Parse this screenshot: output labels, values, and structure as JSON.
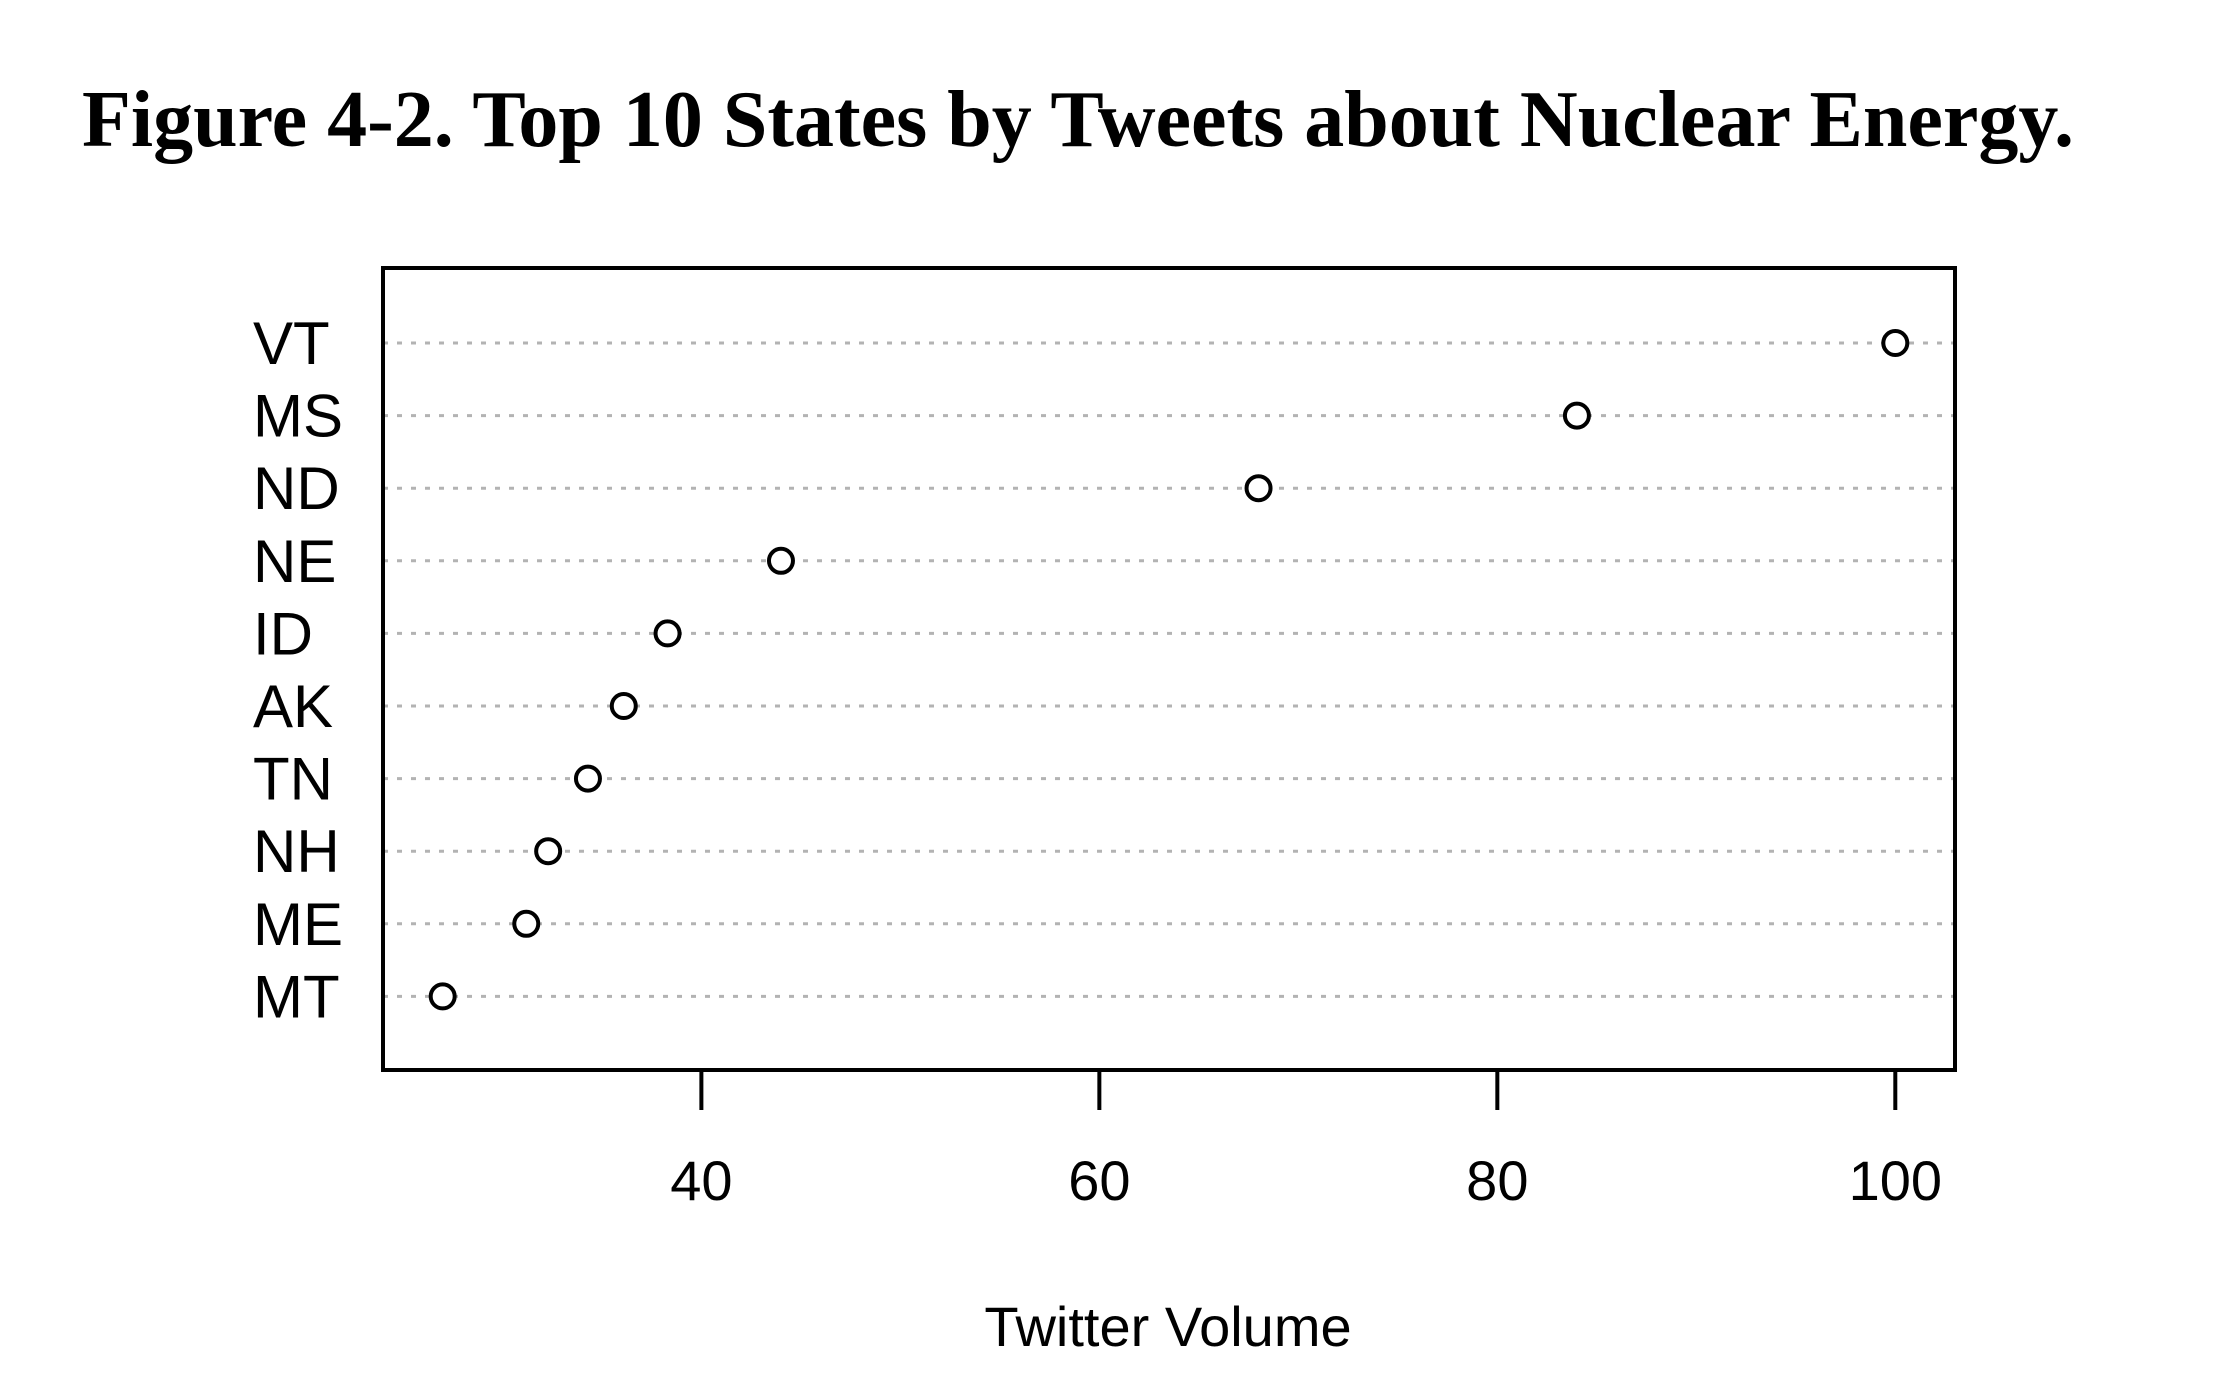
{
  "chart_data": {
    "type": "scatter",
    "title": "Figure 4-2. Top 10 States by Tweets about Nuclear Energy.",
    "xlabel": "Twitter Volume",
    "ylabel": "",
    "categories": [
      "VT",
      "MS",
      "ND",
      "NE",
      "ID",
      "AK",
      "TN",
      "NH",
      "ME",
      "MT"
    ],
    "values": [
      100,
      84,
      68,
      44,
      38.3,
      36.1,
      34.3,
      32.3,
      31.2,
      27
    ],
    "xlim": [
      24,
      103
    ],
    "xticks": [
      40,
      60,
      80,
      100
    ],
    "grid": "dotted horizontal lines per category",
    "marker": "open-circle",
    "colors": {
      "marker": "#000000",
      "grid": "#b3b3b3",
      "frame": "#000000"
    }
  }
}
